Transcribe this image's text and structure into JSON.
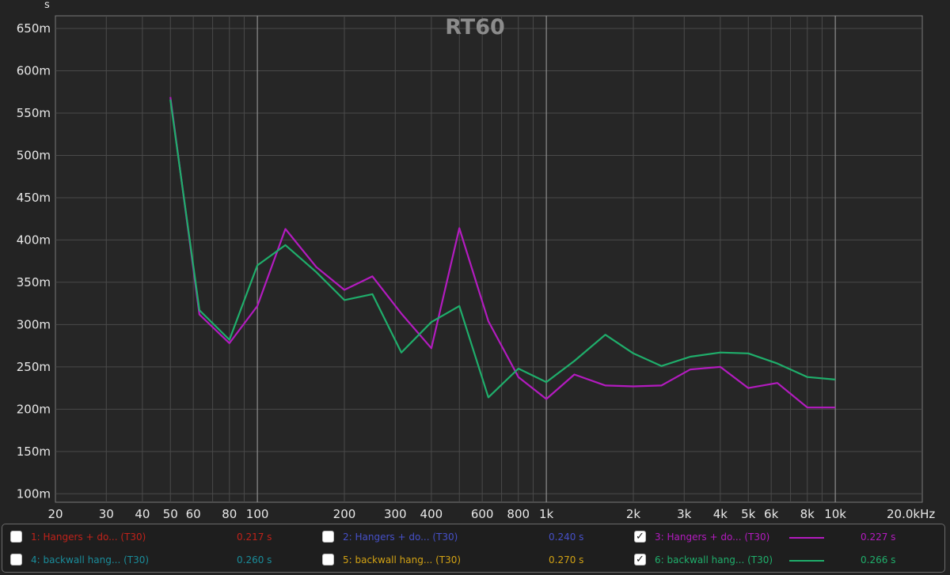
{
  "chart_data": {
    "type": "line",
    "title": "RT60",
    "y_unit": "s",
    "x_unit_label": "20.0kHz",
    "x_scale": "log",
    "xlim": [
      20,
      20000
    ],
    "ylim": [
      0.09,
      0.665
    ],
    "yticks": [
      {
        "value": 0.1,
        "label": "100m"
      },
      {
        "value": 0.15,
        "label": "150m"
      },
      {
        "value": 0.2,
        "label": "200m"
      },
      {
        "value": 0.25,
        "label": "250m"
      },
      {
        "value": 0.3,
        "label": "300m"
      },
      {
        "value": 0.35,
        "label": "350m"
      },
      {
        "value": 0.4,
        "label": "400m"
      },
      {
        "value": 0.45,
        "label": "450m"
      },
      {
        "value": 0.5,
        "label": "500m"
      },
      {
        "value": 0.55,
        "label": "550m"
      },
      {
        "value": 0.6,
        "label": "600m"
      },
      {
        "value": 0.65,
        "label": "650m"
      }
    ],
    "xticks": [
      {
        "value": 20,
        "label": "20"
      },
      {
        "value": 30,
        "label": "30"
      },
      {
        "value": 40,
        "label": "40"
      },
      {
        "value": 50,
        "label": "50"
      },
      {
        "value": 60,
        "label": "60"
      },
      {
        "value": 80,
        "label": "80"
      },
      {
        "value": 100,
        "label": "100"
      },
      {
        "value": 200,
        "label": "200"
      },
      {
        "value": 300,
        "label": "300"
      },
      {
        "value": 400,
        "label": "400"
      },
      {
        "value": 600,
        "label": "600"
      },
      {
        "value": 800,
        "label": "800"
      },
      {
        "value": 1000,
        "label": "1k"
      },
      {
        "value": 2000,
        "label": "2k"
      },
      {
        "value": 3000,
        "label": "3k"
      },
      {
        "value": 4000,
        "label": "4k"
      },
      {
        "value": 5000,
        "label": "5k"
      },
      {
        "value": 6000,
        "label": "6k"
      },
      {
        "value": 8000,
        "label": "8k"
      },
      {
        "value": 10000,
        "label": "10k"
      }
    ],
    "grid_minor": [
      70,
      90,
      500,
      700,
      900,
      7000,
      9000
    ],
    "grid_major": [
      100,
      1000,
      10000
    ],
    "grid": true,
    "legend_position": "bottom",
    "x": [
      50,
      63,
      80,
      100,
      125,
      160,
      200,
      250,
      315,
      400,
      500,
      630,
      800,
      1000,
      1250,
      1600,
      2000,
      2500,
      3150,
      4000,
      5000,
      6300,
      8000,
      10000
    ],
    "series": [
      {
        "name": "3: Hangers + do... (T30)",
        "color": "#b31bbf",
        "values": [
          0.569,
          0.312,
          0.278,
          0.322,
          0.413,
          0.368,
          0.341,
          0.357,
          0.313,
          0.272,
          0.414,
          0.304,
          0.238,
          0.212,
          0.241,
          0.228,
          0.227,
          0.228,
          0.247,
          0.25,
          0.225,
          0.231,
          0.202,
          0.202
        ]
      },
      {
        "name": "6: backwall hang... (T30)",
        "color": "#1fae6b",
        "values": [
          0.566,
          0.317,
          0.282,
          0.37,
          0.394,
          0.362,
          0.329,
          0.336,
          0.267,
          0.303,
          0.322,
          0.214,
          0.248,
          0.232,
          0.257,
          0.288,
          0.266,
          0.251,
          0.262,
          0.267,
          0.266,
          0.254,
          0.238,
          0.235
        ]
      }
    ]
  },
  "legend": {
    "rows": [
      [
        {
          "checked": false,
          "name": "1: Hangers + do... (T30)",
          "value": "0.217 s",
          "color": "#c0221a",
          "show_swatch": false
        },
        {
          "checked": false,
          "name": "2: Hangers + do... (T30)",
          "value": "0.240 s",
          "color": "#4650c8",
          "show_swatch": false
        },
        {
          "checked": true,
          "name": "3: Hangers + do... (T30)",
          "value": "0.227 s",
          "color": "#b31bbf",
          "show_swatch": true
        }
      ],
      [
        {
          "checked": false,
          "name": "4: backwall hang... (T30)",
          "value": "0.260 s",
          "color": "#1a8c9a",
          "show_swatch": false
        },
        {
          "checked": false,
          "name": "5: backwall hang... (T30)",
          "value": "0.270 s",
          "color": "#d2a214",
          "show_swatch": false
        },
        {
          "checked": true,
          "name": "6: backwall hang... (T30)",
          "value": "0.266 s",
          "color": "#1fae6b",
          "show_swatch": true
        }
      ]
    ]
  }
}
